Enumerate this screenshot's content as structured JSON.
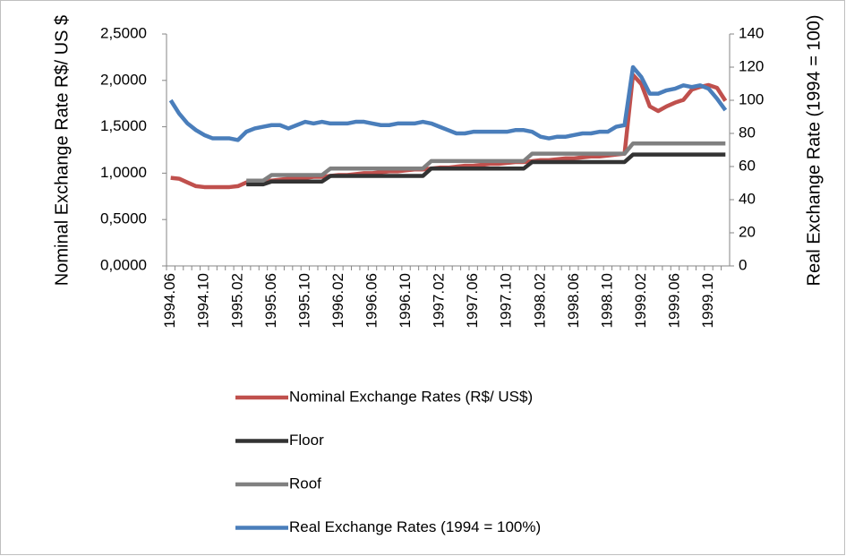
{
  "chart_data": {
    "type": "line",
    "categories": [
      "1994.06",
      null,
      null,
      null,
      "1994.10",
      null,
      null,
      null,
      "1995.02",
      null,
      null,
      null,
      "1995.06",
      null,
      null,
      null,
      "1995.10",
      null,
      null,
      null,
      "1996.02",
      null,
      null,
      null,
      "1996.06",
      null,
      null,
      null,
      "1996.10",
      null,
      null,
      null,
      "1997.02",
      null,
      null,
      null,
      "1997.06",
      null,
      null,
      null,
      "1997.10",
      null,
      null,
      null,
      "1998.02",
      null,
      null,
      null,
      "1998.06",
      null,
      null,
      null,
      "1998.10",
      null,
      null,
      null,
      "1999.02",
      null,
      null,
      null,
      "1999.06",
      null,
      null,
      null,
      "1999.10",
      null,
      null
    ],
    "series": [
      {
        "name": "Nominal Exchange Rates (R$/ US$)",
        "color": "#c0504d",
        "values": [
          0.95,
          0.94,
          0.9,
          0.86,
          0.85,
          0.85,
          0.85,
          0.85,
          0.86,
          0.9,
          0.91,
          0.92,
          0.92,
          0.93,
          0.94,
          0.94,
          0.95,
          0.96,
          0.96,
          0.97,
          0.98,
          0.98,
          0.99,
          1.0,
          1.0,
          1.01,
          1.02,
          1.02,
          1.03,
          1.04,
          1.04,
          1.05,
          1.06,
          1.06,
          1.07,
          1.08,
          1.08,
          1.09,
          1.1,
          1.1,
          1.11,
          1.12,
          1.12,
          1.13,
          1.14,
          1.14,
          1.15,
          1.16,
          1.16,
          1.17,
          1.18,
          1.18,
          1.19,
          1.2,
          1.21,
          2.06,
          1.96,
          1.72,
          1.67,
          1.72,
          1.76,
          1.79,
          1.9,
          1.93,
          1.95,
          1.92,
          1.78
        ]
      },
      {
        "name": "Floor",
        "color": "#333333",
        "values": [
          null,
          null,
          null,
          null,
          null,
          null,
          null,
          null,
          null,
          0.88,
          0.88,
          0.88,
          0.91,
          0.91,
          0.91,
          0.91,
          0.91,
          0.91,
          0.91,
          0.97,
          0.97,
          0.97,
          0.97,
          0.97,
          0.97,
          0.97,
          0.97,
          0.97,
          0.97,
          0.97,
          0.97,
          1.05,
          1.05,
          1.05,
          1.05,
          1.05,
          1.05,
          1.05,
          1.05,
          1.05,
          1.05,
          1.05,
          1.05,
          1.12,
          1.12,
          1.12,
          1.12,
          1.12,
          1.12,
          1.12,
          1.12,
          1.12,
          1.12,
          1.12,
          1.12,
          1.2,
          1.2,
          1.2,
          1.2,
          1.2,
          1.2,
          1.2,
          1.2,
          1.2,
          1.2,
          1.2,
          1.2
        ]
      },
      {
        "name": "Roof",
        "color": "#808080",
        "values": [
          null,
          null,
          null,
          null,
          null,
          null,
          null,
          null,
          null,
          0.92,
          0.92,
          0.92,
          0.98,
          0.98,
          0.98,
          0.98,
          0.98,
          0.98,
          0.98,
          1.05,
          1.05,
          1.05,
          1.05,
          1.05,
          1.05,
          1.05,
          1.05,
          1.05,
          1.05,
          1.05,
          1.05,
          1.13,
          1.13,
          1.13,
          1.13,
          1.13,
          1.13,
          1.13,
          1.13,
          1.13,
          1.13,
          1.13,
          1.13,
          1.21,
          1.21,
          1.21,
          1.21,
          1.21,
          1.21,
          1.21,
          1.21,
          1.21,
          1.21,
          1.21,
          1.21,
          1.32,
          1.32,
          1.32,
          1.32,
          1.32,
          1.32,
          1.32,
          1.32,
          1.32,
          1.32,
          1.32,
          1.32
        ]
      },
      {
        "name": "Real Exchange Rates (1994 = 100%)",
        "color": "#4a7ebb",
        "axis": "y2",
        "values": [
          100,
          92,
          86,
          82,
          79,
          77,
          77,
          77,
          76,
          81,
          83,
          84,
          85,
          85,
          83,
          85,
          87,
          86,
          87,
          86,
          86,
          86,
          87,
          87,
          86,
          85,
          85,
          86,
          86,
          86,
          87,
          86,
          84,
          82,
          80,
          80,
          81,
          81,
          81,
          81,
          81,
          82,
          82,
          81,
          78,
          77,
          78,
          78,
          79,
          80,
          80,
          81,
          81,
          84,
          85,
          120,
          114,
          104,
          104,
          106,
          107,
          109,
          108,
          109,
          107,
          101,
          94
        ]
      }
    ],
    "y_label": "Nominal Exchange Rate R$/ US $",
    "y2_label": "Real Exchange Rate (1994 = 100)",
    "ylim": [
      0,
      2.5
    ],
    "yticks": [
      {
        "value": 0,
        "label": "0,0000"
      },
      {
        "value": 0.5,
        "label": "0,5000"
      },
      {
        "value": 1,
        "label": "1,0000"
      },
      {
        "value": 1.5,
        "label": "1,5000"
      },
      {
        "value": 2,
        "label": "2,0000"
      },
      {
        "value": 2.5,
        "label": "2,5000"
      }
    ],
    "y2lim": [
      0,
      140
    ],
    "y2ticks": [
      0,
      20,
      40,
      60,
      80,
      100,
      120,
      140
    ],
    "grid": false,
    "legend": "bottom"
  }
}
